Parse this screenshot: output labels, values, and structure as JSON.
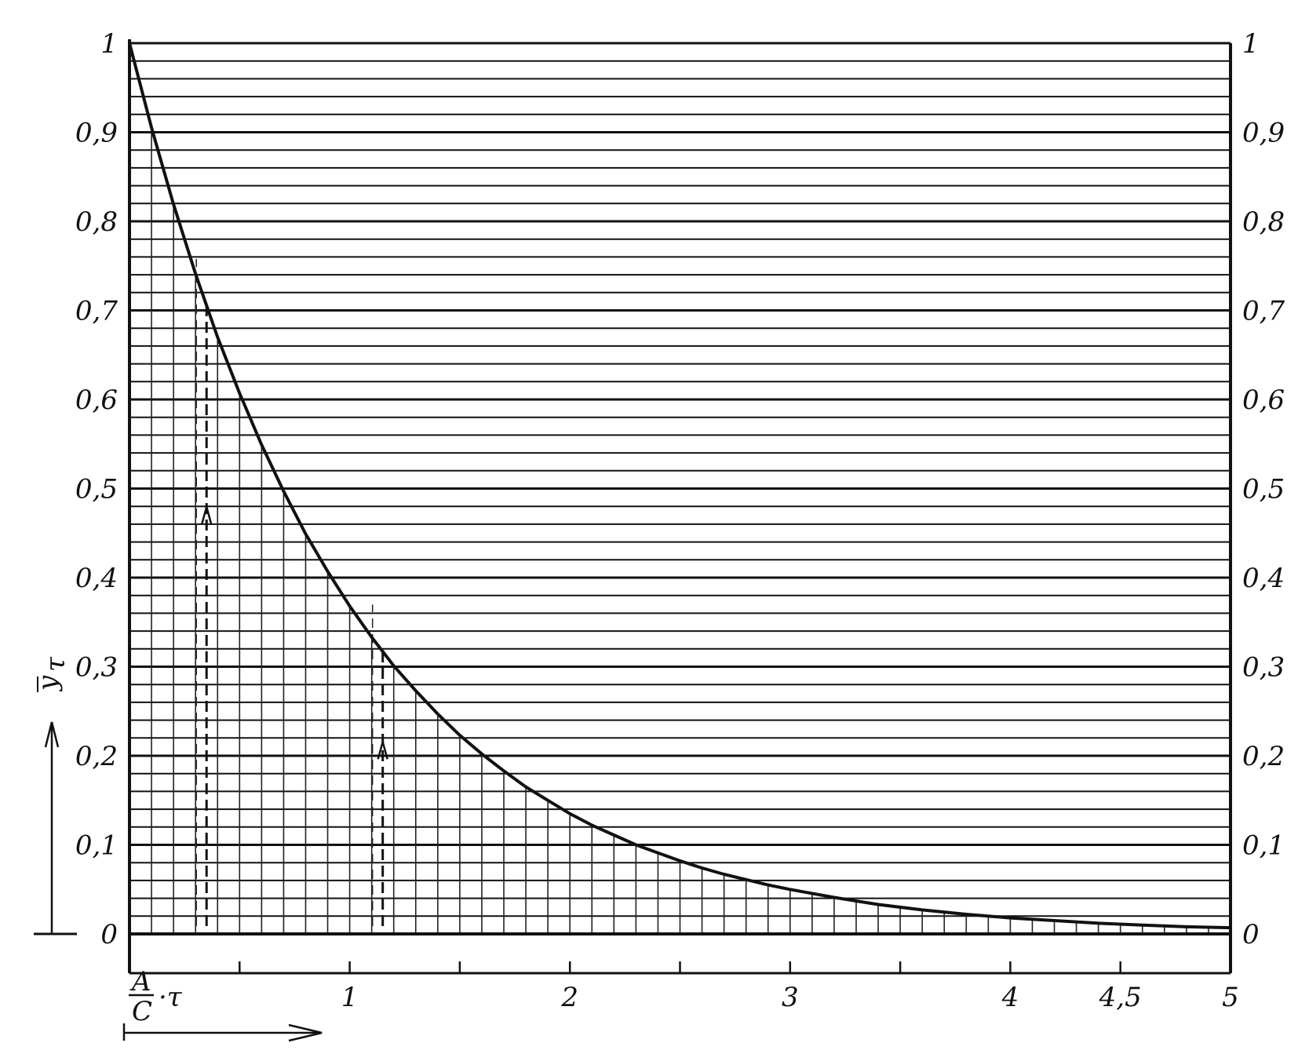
{
  "chart_data": {
    "type": "line",
    "title": "",
    "xlabel": {
      "numerator": "A",
      "denominator": "C",
      "suffix": "·τ"
    },
    "ylabel": {
      "base": "y",
      "subscript": "τ"
    },
    "xlim": [
      0,
      5
    ],
    "ylim": [
      0,
      1
    ],
    "grid": true,
    "x_ticks": [
      {
        "value": 1,
        "label": "1"
      },
      {
        "value": 2,
        "label": "2"
      },
      {
        "value": 3,
        "label": "3"
      },
      {
        "value": 4,
        "label": "4"
      },
      {
        "value": 4.5,
        "label": "4,5"
      },
      {
        "value": 5,
        "label": "5"
      }
    ],
    "y_ticks": [
      {
        "value": 0,
        "label": "0"
      },
      {
        "value": 0.1,
        "label": "0,1"
      },
      {
        "value": 0.2,
        "label": "0,2"
      },
      {
        "value": 0.3,
        "label": "0,3"
      },
      {
        "value": 0.4,
        "label": "0,4"
      },
      {
        "value": 0.5,
        "label": "0,5"
      },
      {
        "value": 0.6,
        "label": "0,6"
      },
      {
        "value": 0.7,
        "label": "0,7"
      },
      {
        "value": 0.8,
        "label": "0,8"
      },
      {
        "value": 0.9,
        "label": "0,9"
      },
      {
        "value": 1,
        "label": "1"
      }
    ],
    "series": [
      {
        "x": [
          0,
          0.1,
          0.2,
          0.3,
          0.4,
          0.5,
          0.6,
          0.7,
          0.8,
          0.9,
          1.0,
          1.1,
          1.2,
          1.3,
          1.4,
          1.5,
          1.6,
          1.7,
          1.8,
          1.9,
          2.0,
          2.1,
          2.2,
          2.3,
          2.4,
          2.5,
          2.6,
          2.7,
          2.8,
          2.9,
          3.0,
          3.2,
          3.4,
          3.6,
          3.8,
          4.0,
          4.2,
          4.4,
          4.6,
          4.8,
          5.0
        ],
        "y": [
          1.0,
          0.905,
          0.819,
          0.741,
          0.67,
          0.607,
          0.549,
          0.497,
          0.449,
          0.407,
          0.368,
          0.333,
          0.301,
          0.273,
          0.247,
          0.223,
          0.202,
          0.183,
          0.165,
          0.15,
          0.135,
          0.122,
          0.111,
          0.1,
          0.091,
          0.082,
          0.074,
          0.067,
          0.061,
          0.055,
          0.05,
          0.041,
          0.033,
          0.027,
          0.022,
          0.018,
          0.015,
          0.012,
          0.01,
          0.008,
          0.007
        ]
      }
    ],
    "reference_markers": [
      {
        "x": 0.35,
        "y": 0.705
      },
      {
        "x": 1.15,
        "y": 0.317
      }
    ]
  }
}
